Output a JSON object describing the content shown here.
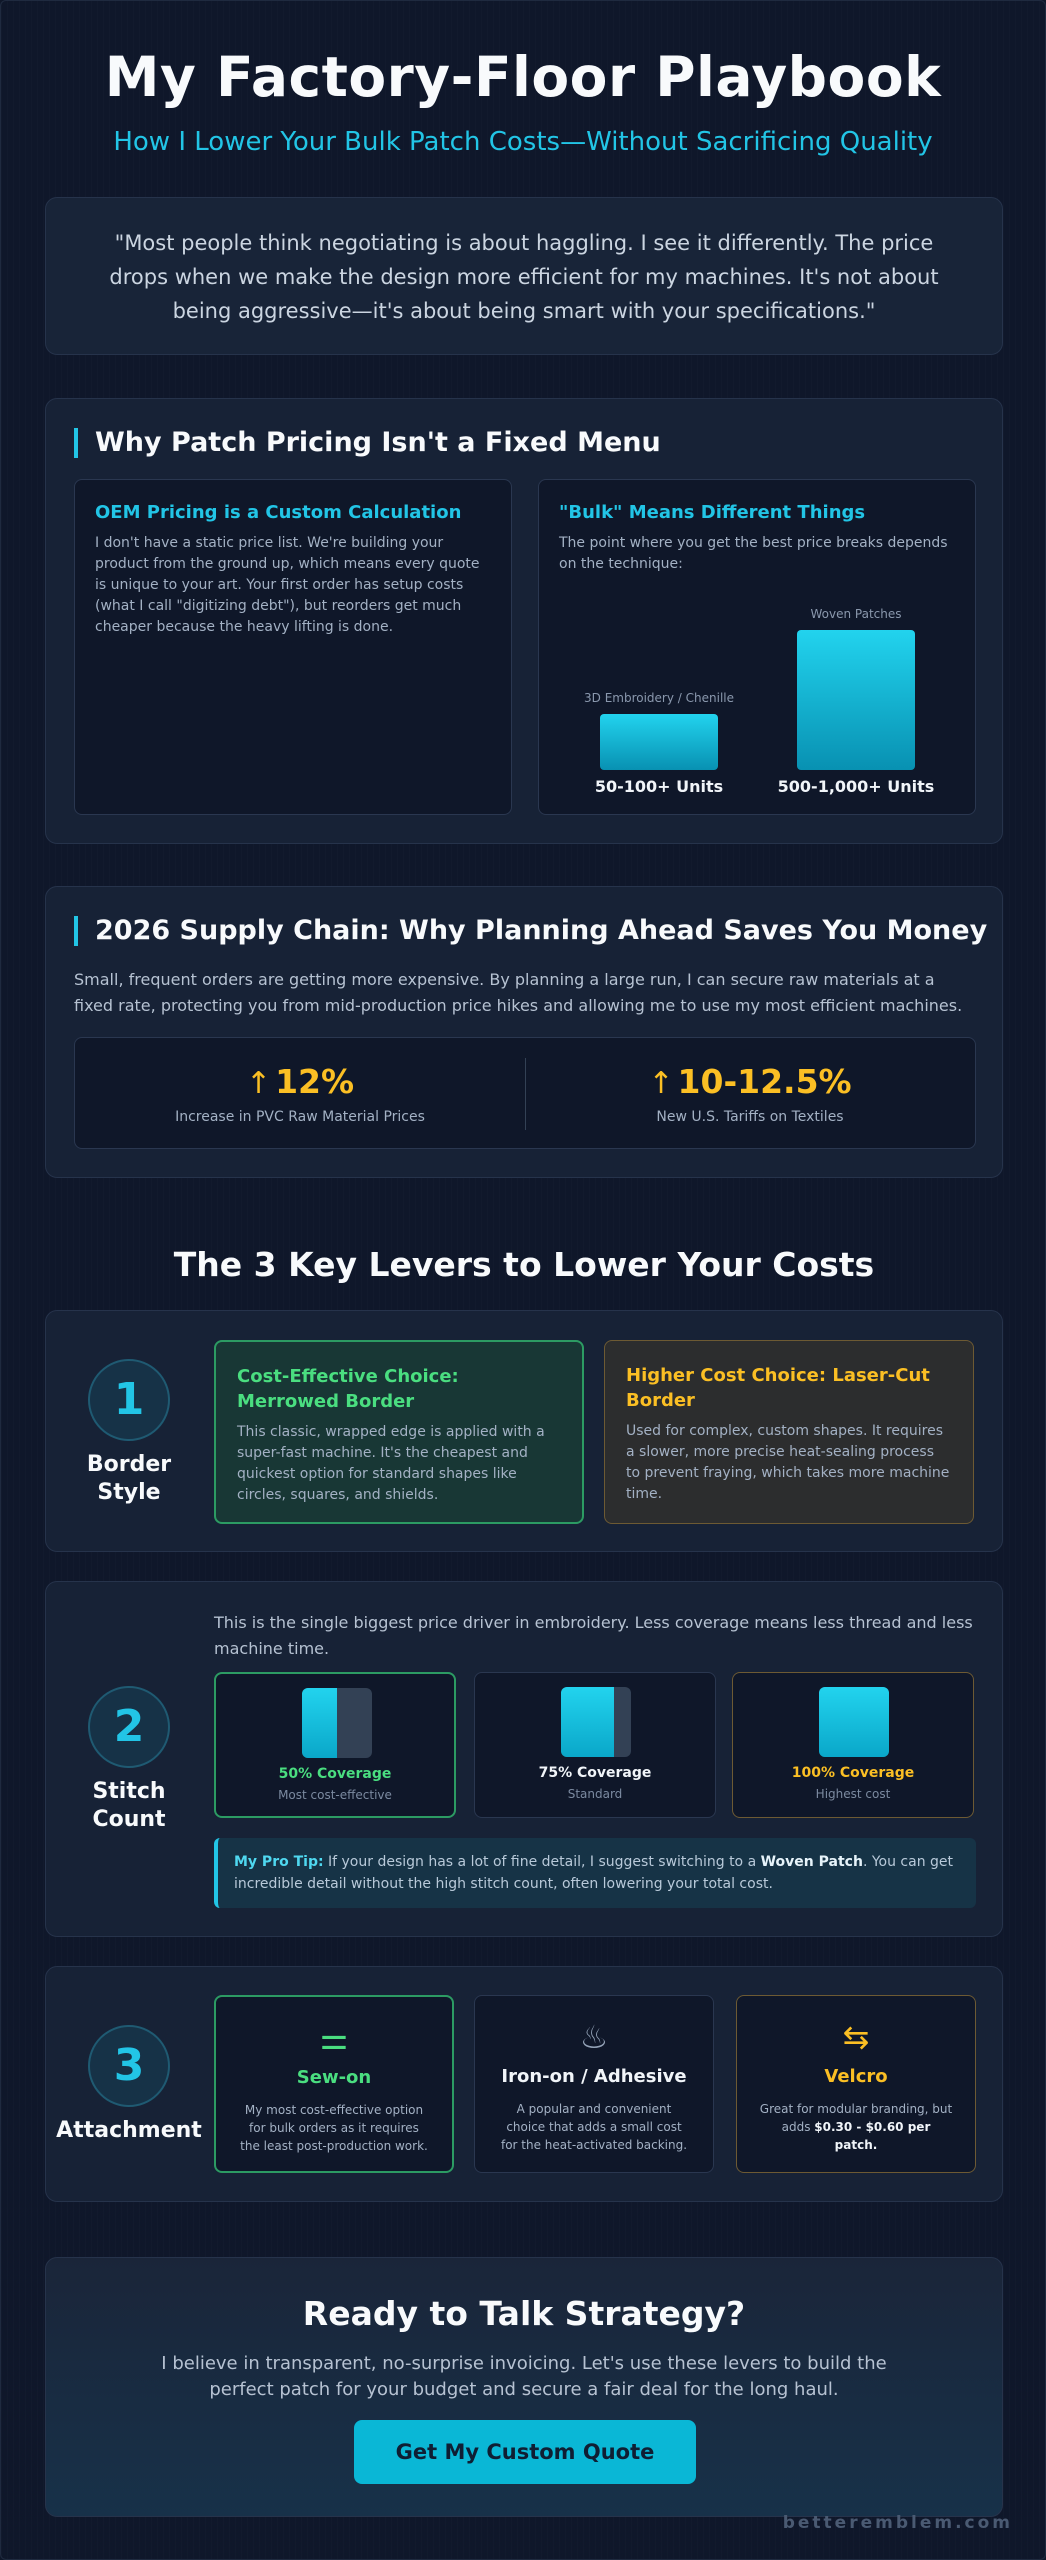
{
  "header": {
    "title": "My Factory-Floor Playbook",
    "subtitle": "How I Lower Your Bulk Patch Costs—Without Sacrificing Quality"
  },
  "quote": "\"Most people think negotiating is about haggling. I see it differently. The price drops when we make the design more efficient for my machines. It's not about being aggressive—it's about being smart with your specifications.\"",
  "pricing": {
    "title": "Why Patch Pricing Isn't a Fixed Menu",
    "oem_card": {
      "title": "OEM Pricing is a Custom Calculation",
      "body": "I don't have a static price list. We're building your product from the ground up, which means every quote is unique to your art. Your first order has setup costs (what I call \"digitizing debt\"), but reorders get much cheaper because the heavy lifting is done."
    },
    "bulk_card": {
      "title": "\"Bulk\" Means Different Things",
      "body": "The point where you get the best price breaks depends on the technique:"
    }
  },
  "chart_data": {
    "type": "bar",
    "categories": [
      "3D Embroidery / Chenille",
      "Woven Patches"
    ],
    "value_labels": [
      "50-100+ Units",
      "500-1,000+ Units"
    ],
    "values": [
      100,
      1000
    ]
  },
  "supply": {
    "title": "2026 Supply Chain: Why Planning Ahead Saves You Money",
    "body": "Small, frequent orders are getting more expensive. By planning a large run, I can secure raw materials at a fixed rate, protecting you from mid-production price hikes and allowing me to use my most efficient machines.",
    "arrow_glyph": "↑",
    "stats": [
      {
        "value": "12%",
        "label": "Increase in PVC Raw Material Prices"
      },
      {
        "value": "10-12.5%",
        "label": "New U.S. Tariffs on Textiles"
      }
    ]
  },
  "levers": {
    "title": "The 3 Key Levers to Lower Your Costs",
    "border": {
      "number": "1",
      "label": "Border Style",
      "cheap": {
        "title": "Cost-Effective Choice: Merrowed Border",
        "body": "This classic, wrapped edge is applied with a super-fast machine. It's the cheapest and quickest option for standard shapes like circles, squares, and shields."
      },
      "costly": {
        "title": "Higher Cost Choice: Laser-Cut Border",
        "body": "Used for complex, custom shapes. It requires a slower, more precise heat-sealing process to prevent fraying, which takes more machine time."
      }
    },
    "stitch": {
      "number": "2",
      "label": "Stitch Count",
      "intro": "This is the single biggest price driver in embroidery. Less coverage means less thread and less machine time.",
      "coverage": [
        {
          "title": "50% Coverage",
          "sub": "Most cost-effective",
          "fill": 0.5,
          "color": "#4ade80",
          "border": "#2c9b63"
        },
        {
          "title": "75% Coverage",
          "sub": "Standard",
          "fill": 0.75,
          "color": "#f1f5f9",
          "border": "#2a3750"
        },
        {
          "title": "100% Coverage",
          "sub": "Highest cost",
          "fill": 1.0,
          "color": "#fbbf24",
          "border": "#6d5a33"
        }
      ],
      "tip": {
        "lead": "My Pro Tip:",
        "text_a": " If your design has a lot of fine detail, I suggest switching to a ",
        "highlight": "Woven Patch",
        "text_b": ". You can get incredible detail without the high stitch count, often lowering your total cost."
      }
    },
    "attachment": {
      "number": "3",
      "label": "Attachment",
      "options": [
        {
          "icon": "sew-icon",
          "glyph": "⚌",
          "title": "Sew-on",
          "body": "My most cost-effective option for bulk orders as it requires the least post-production work.",
          "color": "#4ade80",
          "border": "#2c9b63"
        },
        {
          "icon": "iron-icon",
          "glyph": "♨",
          "title": "Iron-on / Adhesive",
          "body": "A popular and convenient choice that adds a small cost for the heat-activated backing.",
          "color": "#f1f5f9",
          "border": "#2a3750"
        },
        {
          "icon": "swap-arrows-icon",
          "glyph": "⇆",
          "title": "Velcro",
          "body_a": "Great for modular branding, but adds ",
          "body_b": "$0.30 - $0.60 per patch.",
          "color": "#fbbf24",
          "border": "#6d5a33"
        }
      ]
    }
  },
  "cta": {
    "title": "Ready to Talk Strategy?",
    "body": "I believe in transparent, no-surprise invoicing. Let's use these levers to build the perfect patch for your budget and secure a fair deal for the long haul.",
    "button": "Get My Custom Quote"
  },
  "footer": "betteremblem.com",
  "colors": {
    "accent": "#22c5e6",
    "success": "#4ade80",
    "warning": "#fbbf24",
    "background": "#0f172a"
  }
}
